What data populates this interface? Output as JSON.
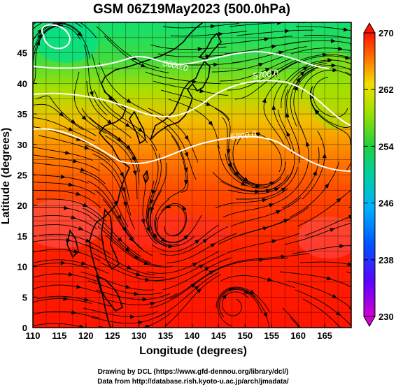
{
  "title": "GSM 06Z19May2023 (500.0hPa)",
  "xlabel": "Longitude (degrees)",
  "ylabel": "Latitude  (degrees)",
  "xticks": [
    "110",
    "115",
    "120",
    "125",
    "130",
    "135",
    "140",
    "145",
    "150",
    "155",
    "160",
    "165"
  ],
  "yticks": [
    "0",
    "5",
    "10",
    "15",
    "20",
    "25",
    "30",
    "35",
    "40",
    "45"
  ],
  "colorbar": {
    "ticks": [
      "230",
      "238",
      "246",
      "254",
      "262",
      "270"
    ],
    "colors": [
      "#e000e0",
      "#4000ff",
      "#0080ff",
      "#00e0e0",
      "#20d060",
      "#60d000",
      "#e0e000",
      "#ff9000",
      "#ff3000",
      "#ff0000"
    ]
  },
  "contours": [
    "5600.0",
    "5700.0",
    "5800.0"
  ],
  "credits": [
    "Drawing by DCL (https://www.gfd-dennou.org/library/dcl/)",
    "Data from http://database.rish.kyoto-u.ac.jp/arch/jmadata/"
  ],
  "map_data": {
    "field": "temperature (K) shaded, geopotential height contours, wind streamlines",
    "lon_range": [
      110,
      170
    ],
    "lat_range": [
      0,
      50
    ],
    "color_range": [
      230,
      270
    ]
  }
}
